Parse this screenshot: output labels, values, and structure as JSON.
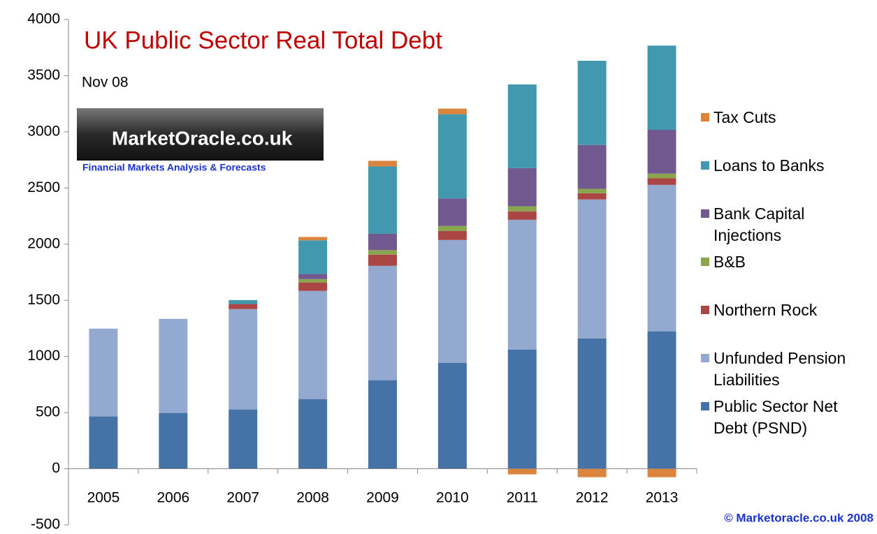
{
  "chart_data": {
    "type": "stacked_bar",
    "title": "UK Public Sector Real Total Debt",
    "subtitle": "Nov 08",
    "logo": {
      "name": "MarketOracle.co.uk",
      "tagline": "Financial Markets Analysis & Forecasts"
    },
    "footer": "© Marketoracle.co.uk  2008",
    "categories": [
      "2005",
      "2006",
      "2007",
      "2008",
      "2009",
      "2010",
      "2011",
      "2012",
      "2013"
    ],
    "series": [
      {
        "name": "Public Sector Net Debt (PSND)",
        "color": "#4572a7",
        "values": [
          466,
          497,
          528,
          621,
          789,
          944,
          1062,
          1161,
          1224
        ]
      },
      {
        "name": "Unfunded Pension Liabilities",
        "color": "#93a9cf",
        "values": [
          782,
          838,
          894,
          963,
          1018,
          1093,
          1155,
          1237,
          1304
        ]
      },
      {
        "name": "Northern Rock",
        "color": "#aa4643",
        "values": [
          0,
          0,
          45,
          75,
          100,
          80,
          75,
          55,
          60
        ]
      },
      {
        "name": "B&B",
        "color": "#89a54e",
        "values": [
          0,
          0,
          0,
          30,
          40,
          45,
          45,
          40,
          40
        ]
      },
      {
        "name": "Bank Capital Injections",
        "color": "#71588f",
        "values": [
          0,
          0,
          0,
          45,
          145,
          245,
          340,
          390,
          390
        ]
      },
      {
        "name": "Loans to  Banks",
        "color": "#4198af",
        "values": [
          0,
          0,
          35,
          300,
          600,
          750,
          745,
          750,
          750
        ]
      },
      {
        "name": "Tax Cuts",
        "color": "#db843d",
        "values": [
          0,
          0,
          0,
          30,
          50,
          50,
          -50,
          -75,
          -75
        ]
      }
    ],
    "ylim": [
      -500,
      4000
    ],
    "yticks": [
      -500,
      0,
      500,
      1000,
      1500,
      2000,
      2500,
      3000,
      3500,
      4000
    ],
    "legend": "right"
  }
}
